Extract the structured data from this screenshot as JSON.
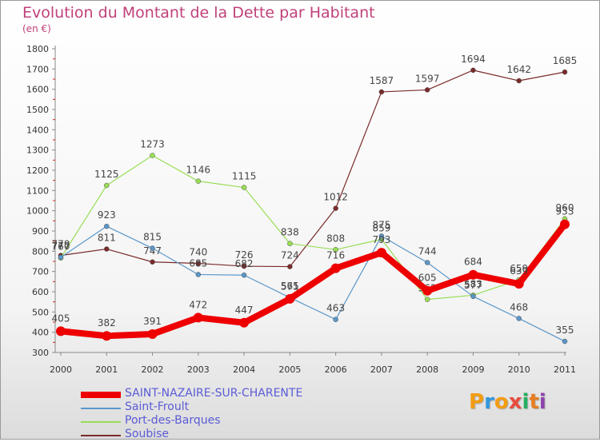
{
  "title": "Evolution du Montant de la Dette par Habitant",
  "subtitle": "(en €)",
  "brand": {
    "letters": [
      "P",
      "r",
      "o",
      "x",
      "i",
      "t",
      "i"
    ],
    "colors": [
      "#f39c12",
      "#3498db",
      "#f39c12",
      "#e74c3c",
      "#27ae60",
      "#e67e22",
      "#8e44ad"
    ]
  },
  "chart_data": {
    "type": "line",
    "x": [
      "2000",
      "2001",
      "2002",
      "2003",
      "2004",
      "2005",
      "2006",
      "2007",
      "2008",
      "2009",
      "2010",
      "2011"
    ],
    "ylim": [
      300,
      1800
    ],
    "yticks": [
      300,
      400,
      500,
      600,
      700,
      800,
      900,
      1000,
      1100,
      1200,
      1300,
      1400,
      1500,
      1600,
      1700,
      1800
    ],
    "grid": false,
    "legend_position": "bottom-left",
    "series": [
      {
        "name": "Soubise",
        "color": "#7b2b2b",
        "width": 1.2,
        "values": [
          779,
          811,
          747,
          740,
          726,
          724,
          1012,
          1587,
          1597,
          1694,
          1642,
          1685
        ],
        "labels": [
          "779",
          "811",
          "747",
          "740",
          "726",
          "724",
          "1012",
          "1587",
          "1597",
          "1694",
          "1642",
          "1685"
        ]
      },
      {
        "name": "Port-des-Barques",
        "color": "#99dd55",
        "width": 1.2,
        "values": [
          767,
          1125,
          1273,
          1146,
          1115,
          838,
          808,
          859,
          562,
          583,
          659,
          960
        ],
        "labels": [
          "767",
          "1125",
          "1273",
          "1146",
          "1115",
          "838",
          "808",
          "859",
          "562",
          "583",
          "659",
          "960"
        ]
      },
      {
        "name": "Saint-Froult",
        "color": "#5b97c9",
        "width": 1.2,
        "values": [
          770,
          923,
          815,
          685,
          682,
          571,
          463,
          875,
          744,
          577,
          468,
          355
        ],
        "labels": [
          "770",
          "923",
          "815",
          "685",
          "682",
          "571",
          "463",
          "875",
          "744",
          "577",
          "468",
          "355"
        ]
      },
      {
        "name": "SAINT-NAZAIRE-SUR-CHARENTE",
        "color": "#ee0000",
        "width": 8,
        "values": [
          405,
          382,
          391,
          472,
          447,
          565,
          716,
          793,
          605,
          684,
          639,
          933
        ],
        "labels": [
          "405",
          "382",
          "391",
          "472",
          "447",
          "565",
          "716",
          "793",
          "605",
          "684",
          "639",
          "933"
        ]
      }
    ]
  },
  "legend": [
    {
      "name": "SAINT-NAZAIRE-SUR-CHARENTE",
      "color": "#ee0000",
      "thickness": 8
    },
    {
      "name": "Saint-Froult",
      "color": "#5b97c9",
      "thickness": 2
    },
    {
      "name": "Port-des-Barques",
      "color": "#99dd55",
      "thickness": 2
    },
    {
      "name": "Soubise",
      "color": "#7b2b2b",
      "thickness": 2
    }
  ]
}
